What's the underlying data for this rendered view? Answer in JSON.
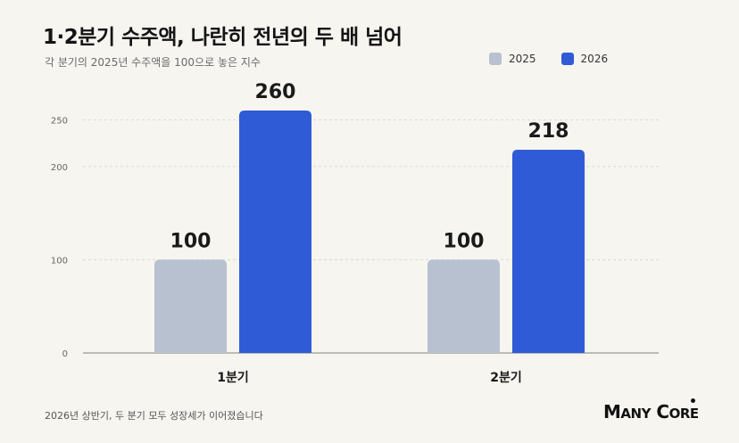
{
  "title": "1·2분기 수주액, 나란히 전년의 두 배 넘어",
  "subtitle": "각 분기의 2025년 수주액을 100으로 놓은 지수",
  "footnote": "2026년 상반기, 두 분기 모두 성장세가 이어졌습니다",
  "logo": "MANY CORE",
  "colors": {
    "series_2025": "#b8c1d0",
    "series_2026": "#2f5bd7",
    "grid": "#d9d9d2",
    "axis": "#9a9a94"
  },
  "chart_data": {
    "type": "bar",
    "title": "1·2분기 수주액, 나란히 전년의 두 배 넘어",
    "subtitle": "각 분기의 2025년 수주액을 100으로 놓은 지수",
    "categories": [
      "1분기",
      "2분기"
    ],
    "series": [
      {
        "name": "2025",
        "values": [
          100,
          100
        ]
      },
      {
        "name": "2026",
        "values": [
          260,
          218
        ]
      }
    ],
    "data_labels": [
      [
        "100",
        "100"
      ],
      [
        "260",
        "218"
      ]
    ],
    "y_ticks": [
      "0",
      "100",
      "200",
      "250"
    ],
    "y_tick_values": [
      0,
      100,
      200,
      250
    ],
    "ylim": [
      0,
      260
    ],
    "grid": true,
    "legend": "top-right"
  }
}
